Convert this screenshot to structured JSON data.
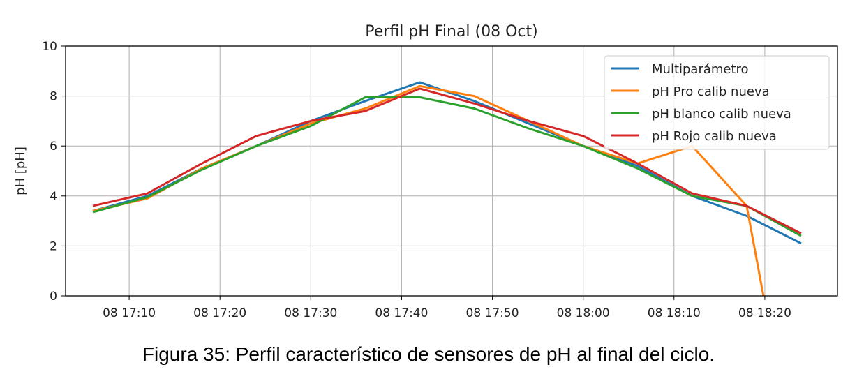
{
  "caption": "Figura 35: Perfil característico de sensores de pH al final del ciclo.",
  "chart_data": {
    "type": "line",
    "title": "Perfil pH Final (08 Oct)",
    "xlabel": "",
    "ylabel": "pH [pH]",
    "ylim": [
      0,
      10
    ],
    "yticks": [
      0,
      2,
      4,
      6,
      8,
      10
    ],
    "xlim": [
      "2018-10-08 17:03",
      "2018-10-08 18:28"
    ],
    "xticks": [
      {
        "value": "2018-10-08 17:10",
        "label": "08 17:10"
      },
      {
        "value": "2018-10-08 17:20",
        "label": "08 17:20"
      },
      {
        "value": "2018-10-08 17:30",
        "label": "08 17:30"
      },
      {
        "value": "2018-10-08 17:40",
        "label": "08 17:40"
      },
      {
        "value": "2018-10-08 17:50",
        "label": "08 17:50"
      },
      {
        "value": "2018-10-08 18:00",
        "label": "08 18:00"
      },
      {
        "value": "2018-10-08 18:10",
        "label": "08 18:10"
      },
      {
        "value": "2018-10-08 18:20",
        "label": "08 18:20"
      }
    ],
    "grid": true,
    "legend_position": "top-right",
    "series": [
      {
        "name": "Multiparámetro",
        "color": "#1f77b4",
        "points": [
          [
            "2018-10-08 17:06",
            3.4
          ],
          [
            "2018-10-08 17:12",
            4.0
          ],
          [
            "2018-10-08 17:18",
            5.1
          ],
          [
            "2018-10-08 17:24",
            6.0
          ],
          [
            "2018-10-08 17:30",
            7.0
          ],
          [
            "2018-10-08 17:36",
            7.8
          ],
          [
            "2018-10-08 17:42",
            8.55
          ],
          [
            "2018-10-08 17:48",
            7.8
          ],
          [
            "2018-10-08 17:54",
            6.9
          ],
          [
            "2018-10-08 18:00",
            6.0
          ],
          [
            "2018-10-08 18:06",
            5.2
          ],
          [
            "2018-10-08 18:12",
            4.0
          ],
          [
            "2018-10-08 18:18",
            3.2
          ],
          [
            "2018-10-08 18:24",
            2.1
          ]
        ]
      },
      {
        "name": "pH Pro calib nueva",
        "color": "#ff7f0e",
        "points": [
          [
            "2018-10-08 17:06",
            3.4
          ],
          [
            "2018-10-08 17:12",
            3.9
          ],
          [
            "2018-10-08 17:18",
            5.1
          ],
          [
            "2018-10-08 17:24",
            6.0
          ],
          [
            "2018-10-08 17:30",
            6.9
          ],
          [
            "2018-10-08 17:36",
            7.5
          ],
          [
            "2018-10-08 17:42",
            8.4
          ],
          [
            "2018-10-08 17:48",
            8.0
          ],
          [
            "2018-10-08 17:54",
            7.0
          ],
          [
            "2018-10-08 18:00",
            6.0
          ],
          [
            "2018-10-08 18:06",
            5.3
          ],
          [
            "2018-10-08 18:12",
            6.0
          ],
          [
            "2018-10-08 18:18",
            3.6
          ],
          [
            "2018-10-08 18:20",
            -0.3
          ]
        ]
      },
      {
        "name": "pH blanco calib nueva",
        "color": "#2ca02c",
        "points": [
          [
            "2018-10-08 17:06",
            3.35
          ],
          [
            "2018-10-08 17:12",
            3.95
          ],
          [
            "2018-10-08 17:18",
            5.05
          ],
          [
            "2018-10-08 17:24",
            6.0
          ],
          [
            "2018-10-08 17:30",
            6.8
          ],
          [
            "2018-10-08 17:36",
            7.95
          ],
          [
            "2018-10-08 17:42",
            7.95
          ],
          [
            "2018-10-08 17:48",
            7.5
          ],
          [
            "2018-10-08 17:54",
            6.7
          ],
          [
            "2018-10-08 18:00",
            6.0
          ],
          [
            "2018-10-08 18:06",
            5.1
          ],
          [
            "2018-10-08 18:12",
            4.0
          ],
          [
            "2018-10-08 18:18",
            3.6
          ],
          [
            "2018-10-08 18:24",
            2.4
          ]
        ]
      },
      {
        "name": "pH Rojo calib nueva",
        "color": "#d62728",
        "points": [
          [
            "2018-10-08 17:06",
            3.6
          ],
          [
            "2018-10-08 17:12",
            4.1
          ],
          [
            "2018-10-08 17:18",
            5.3
          ],
          [
            "2018-10-08 17:24",
            6.4
          ],
          [
            "2018-10-08 17:30",
            7.0
          ],
          [
            "2018-10-08 17:36",
            7.4
          ],
          [
            "2018-10-08 17:42",
            8.3
          ],
          [
            "2018-10-08 17:48",
            7.7
          ],
          [
            "2018-10-08 17:54",
            7.0
          ],
          [
            "2018-10-08 18:00",
            6.4
          ],
          [
            "2018-10-08 18:06",
            5.3
          ],
          [
            "2018-10-08 18:12",
            4.1
          ],
          [
            "2018-10-08 18:18",
            3.6
          ],
          [
            "2018-10-08 18:24",
            2.5
          ]
        ]
      }
    ]
  }
}
